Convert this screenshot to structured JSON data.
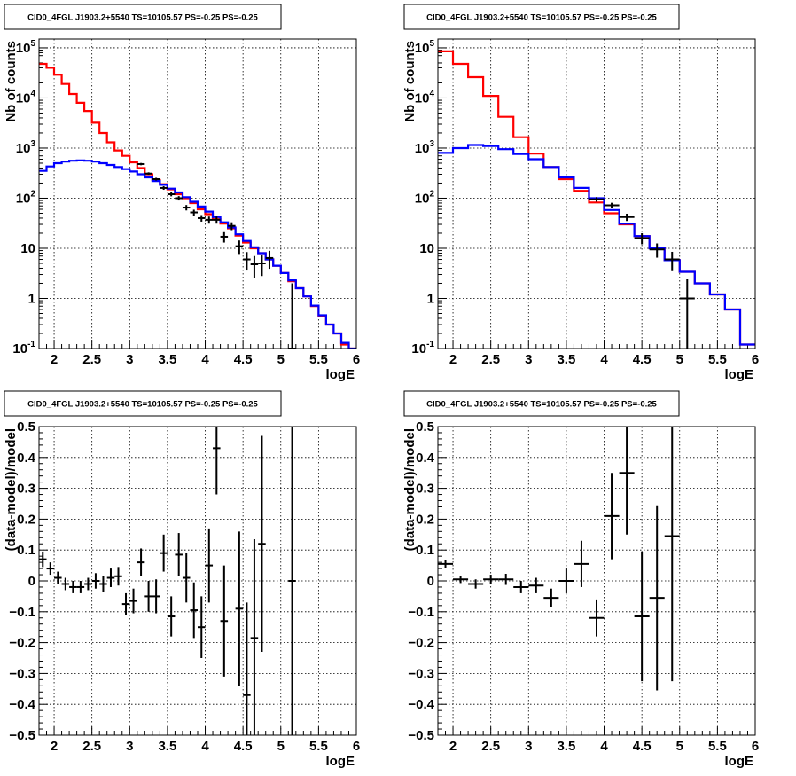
{
  "panel_title": "CID0_4FGL J1903.2+5540 TS=10105.57 PS=-0.25 PS=-0.25",
  "colors": {
    "data": "#000000",
    "total_model": "#ff0000",
    "source_model": "#0000ff",
    "grid": "#000000"
  },
  "chart_data": [
    {
      "type": "histogram",
      "title": "CID0_4FGL J1903.2+5540 TS=10105.57 PS=-0.25 PS=-0.25",
      "xlabel": "logE",
      "ylabel": "Nb of counts",
      "xlim": [
        1.8,
        6
      ],
      "ylim": [
        0.1,
        150000
      ],
      "yscale": "log",
      "grid": true,
      "x_ticks": [
        "2",
        "2.5",
        "3",
        "3.5",
        "4",
        "4.5",
        "5",
        "5.5",
        "6"
      ],
      "y_ticks": [
        "10⁻¹",
        "1",
        "10",
        "10²",
        "10³",
        "10⁴",
        "10⁵"
      ],
      "bin_width": 0.1,
      "series": [
        {
          "kind": "step",
          "bin_edges_start": 1.8,
          "values": [
            48000,
            40000,
            29000,
            19000,
            12000,
            8000,
            5500,
            3200,
            2000,
            1300,
            900,
            700,
            520,
            400,
            300,
            230,
            190,
            150,
            120,
            100,
            80,
            60,
            48,
            38,
            31,
            25,
            18,
            13,
            10,
            8,
            6,
            4.5,
            3.2,
            2.2,
            1.6,
            1.1,
            0.7,
            0.45,
            0.3,
            0.2,
            0.12,
            0.1
          ]
        },
        {
          "kind": "step",
          "bin_edges_start": 1.8,
          "values": [
            350,
            430,
            500,
            540,
            560,
            570,
            560,
            540,
            500,
            460,
            420,
            380,
            340,
            300,
            260,
            220,
            185,
            155,
            130,
            105,
            85,
            68,
            54,
            42,
            33,
            26,
            19,
            14,
            10.5,
            8,
            6,
            4.5,
            3.2,
            2.3,
            1.6,
            1.1,
            0.72,
            0.46,
            0.3,
            0.2,
            0.13,
            0.1
          ]
        },
        {
          "kind": "points",
          "x": [
            3.15,
            3.25,
            3.35,
            3.45,
            3.55,
            3.65,
            3.75,
            3.85,
            3.95,
            4.05,
            4.15,
            4.25,
            4.35,
            4.45,
            4.55,
            4.65,
            4.75,
            4.85,
            5.15
          ],
          "y": [
            480,
            310,
            240,
            160,
            120,
            100,
            65,
            52,
            40,
            37,
            37,
            17,
            28,
            11,
            6,
            4.8,
            5,
            6.4,
            0.1
          ],
          "yerr": [
            25,
            18,
            15,
            13,
            11,
            10,
            8,
            7,
            6,
            6,
            6,
            4,
            5,
            3.3,
            2.4,
            2.2,
            2.2,
            2.5,
            1.9
          ],
          "xerr": 0.05
        }
      ]
    },
    {
      "type": "histogram",
      "title": "CID0_4FGL J1903.2+5540 TS=10105.57 PS=-0.25 PS=-0.25",
      "xlabel": "logE",
      "ylabel": "Nb of counts",
      "xlim": [
        1.8,
        6
      ],
      "ylim": [
        0.1,
        150000
      ],
      "yscale": "log",
      "grid": true,
      "x_ticks": [
        "2",
        "2.5",
        "3",
        "3.5",
        "4",
        "4.5",
        "5",
        "5.5",
        "6"
      ],
      "y_ticks": [
        "10⁻¹",
        "1",
        "10",
        "10²",
        "10³",
        "10⁴",
        "10⁵"
      ],
      "bin_width": 0.2,
      "series": [
        {
          "kind": "step",
          "bin_edges_start": 1.8,
          "values": [
            85000,
            48000,
            26000,
            11000,
            4200,
            1650,
            780,
            420,
            240,
            140,
            82,
            50,
            30,
            17.5,
            10,
            5.8,
            3.4,
            2,
            1.2,
            0.6,
            0.12
          ]
        },
        {
          "kind": "step",
          "bin_edges_start": 1.8,
          "values": [
            800,
            1000,
            1150,
            1100,
            950,
            760,
            600,
            420,
            260,
            160,
            100,
            58,
            31,
            17.5,
            10,
            5.8,
            3.4,
            2,
            1.2,
            0.6,
            0.12
          ]
        },
        {
          "kind": "points",
          "x": [
            3.9,
            4.1,
            4.3,
            4.5,
            4.7,
            4.9,
            5.1
          ],
          "y": [
            95,
            72,
            42,
            16,
            9.5,
            6,
            1
          ],
          "yerr": [
            10,
            9,
            7,
            4,
            3,
            2.5,
            1.4
          ],
          "xerr": 0.1
        }
      ]
    },
    {
      "type": "scatter",
      "title": "CID0_4FGL J1903.2+5540 TS=10105.57 PS=-0.25 PS=-0.25",
      "xlabel": "logE",
      "ylabel": "(data-model)/model",
      "xlim": [
        1.8,
        6
      ],
      "ylim": [
        -0.5,
        0.5
      ],
      "grid": true,
      "x_ticks": [
        "2",
        "2.5",
        "3",
        "3.5",
        "4",
        "4.5",
        "5",
        "5.5",
        "6"
      ],
      "y_ticks": [
        "−0.5",
        "−0.4",
        "−0.3",
        "−0.2",
        "−0.1",
        "0",
        "0.1",
        "0.2",
        "0.3",
        "0.4",
        "0.5"
      ],
      "series": [
        {
          "kind": "points",
          "x": [
            1.85,
            1.95,
            2.05,
            2.15,
            2.25,
            2.35,
            2.45,
            2.55,
            2.65,
            2.75,
            2.85,
            2.95,
            3.05,
            3.15,
            3.25,
            3.35,
            3.45,
            3.55,
            3.65,
            3.75,
            3.85,
            3.95,
            4.05,
            4.15,
            4.25,
            4.45,
            4.55,
            4.65,
            4.75,
            5.15
          ],
          "y": [
            0.07,
            0.04,
            0.01,
            -0.01,
            -0.02,
            -0.02,
            -0.01,
            0.0,
            -0.01,
            0.01,
            0.015,
            -0.075,
            -0.065,
            0.06,
            -0.05,
            -0.05,
            0.09,
            -0.115,
            0.085,
            0.01,
            -0.095,
            -0.15,
            0.05,
            0.43,
            -0.13,
            -0.09,
            -0.37,
            -0.185,
            0.12,
            0.0
          ],
          "yerr": [
            0.025,
            0.02,
            0.02,
            0.02,
            0.02,
            0.02,
            0.02,
            0.025,
            0.025,
            0.03,
            0.03,
            0.035,
            0.04,
            0.045,
            0.05,
            0.055,
            0.06,
            0.065,
            0.07,
            0.08,
            0.09,
            0.1,
            0.12,
            0.15,
            0.18,
            0.25,
            0.3,
            0.32,
            0.35,
            0.9
          ],
          "xerr": 0.05
        }
      ]
    },
    {
      "type": "scatter",
      "title": "CID0_4FGL J1903.2+5540 TS=10105.57 PS=-0.25 PS=-0.25",
      "xlabel": "logE",
      "ylabel": "(data-model)/model",
      "xlim": [
        1.8,
        6
      ],
      "ylim": [
        -0.5,
        0.5
      ],
      "grid": true,
      "x_ticks": [
        "2",
        "2.5",
        "3",
        "3.5",
        "4",
        "4.5",
        "5",
        "5.5",
        "6"
      ],
      "y_ticks": [
        "−0.5",
        "−0.4",
        "−0.3",
        "−0.2",
        "−0.1",
        "0",
        "0.1",
        "0.2",
        "0.3",
        "0.4",
        "0.5"
      ],
      "series": [
        {
          "kind": "points",
          "x": [
            1.9,
            2.1,
            2.3,
            2.5,
            2.7,
            2.9,
            3.1,
            3.3,
            3.5,
            3.7,
            3.9,
            4.1,
            4.3,
            4.5,
            4.7,
            4.9
          ],
          "y": [
            0.055,
            0.005,
            -0.01,
            0.005,
            0.005,
            -0.02,
            -0.015,
            -0.055,
            0.0,
            0.055,
            -0.12,
            0.21,
            0.35,
            -0.115,
            -0.055,
            0.145
          ],
          "yerr": [
            0.012,
            0.012,
            0.015,
            0.015,
            0.018,
            0.02,
            0.025,
            0.03,
            0.04,
            0.075,
            0.06,
            0.14,
            0.2,
            0.21,
            0.3,
            0.47
          ],
          "xerr": 0.1
        }
      ]
    }
  ]
}
